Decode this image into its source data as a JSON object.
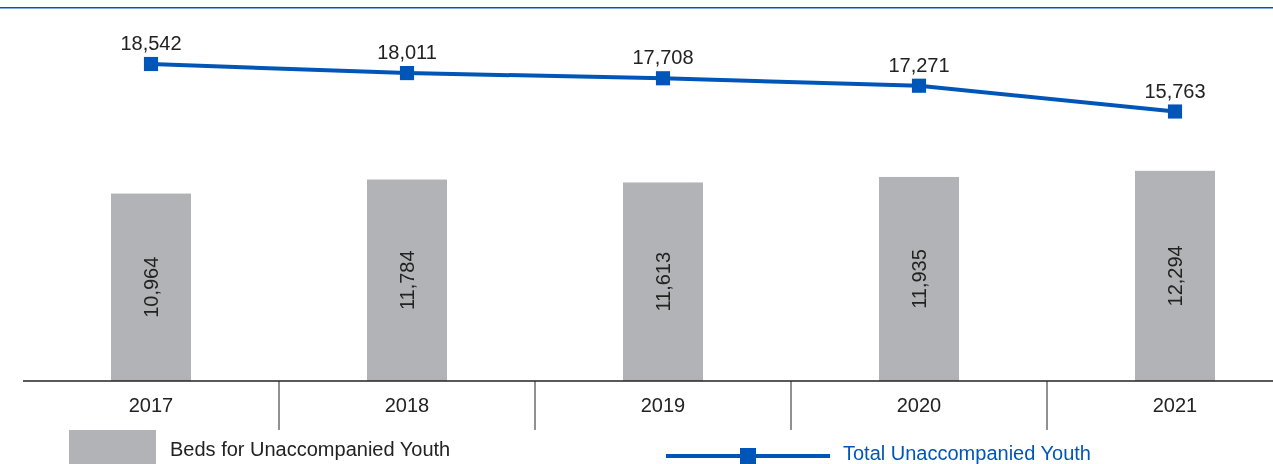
{
  "chart_data": {
    "type": "bar",
    "categories": [
      "2017",
      "2018",
      "2019",
      "2020",
      "2021"
    ],
    "series": [
      {
        "name": "Beds for Unaccompanied Youth",
        "color": "#b1b3b6",
        "values": [
          10964,
          11784,
          11613,
          11935,
          12294
        ],
        "value_labels": [
          "10,964",
          "11,784",
          "11,613",
          "11,935",
          "12,294"
        ]
      },
      {
        "name": "Total Unaccompanied Youth",
        "type": "line",
        "color": "#0056b8",
        "values": [
          18542,
          18011,
          17708,
          17271,
          15763
        ],
        "value_labels": [
          "18,542",
          "18,011",
          "17,708",
          "17,271",
          "15,763"
        ]
      }
    ],
    "tick_labels": "x",
    "marker": "square",
    "line_style": "solid",
    "legend": "bottom"
  }
}
